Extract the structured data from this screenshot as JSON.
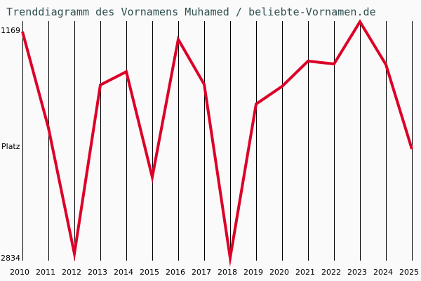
{
  "title": "Trenddiagramm des Vornamens Muhamed / beliebte-Vornamen.de",
  "y_axis": {
    "top_label": "1169",
    "middle_label": "Platz",
    "bottom_label": "2834"
  },
  "colors": {
    "background": "#fafafa",
    "line": "#dc0028",
    "grid": "#000000",
    "title": "#2f4f4f"
  },
  "chart_data": {
    "type": "line",
    "title": "Trenddiagramm des Vornamens Muhamed / beliebte-Vornamen.de",
    "xlabel": "",
    "ylabel": "Platz",
    "y_inverted": true,
    "ylim": [
      1169,
      2834
    ],
    "grid": {
      "vertical": true,
      "horizontal": false
    },
    "legend": "none",
    "categories": [
      "2010",
      "2011",
      "2012",
      "2013",
      "2014",
      "2015",
      "2016",
      "2017",
      "2018",
      "2019",
      "2020",
      "2021",
      "2022",
      "2023",
      "2024",
      "2025"
    ],
    "series": [
      {
        "name": "Muhamed",
        "values": [
          1169,
          1877,
          2803,
          1562,
          1464,
          2240,
          1226,
          1557,
          2834,
          1702,
          1572,
          1386,
          1407,
          1169,
          1412,
          2033
        ]
      }
    ]
  }
}
